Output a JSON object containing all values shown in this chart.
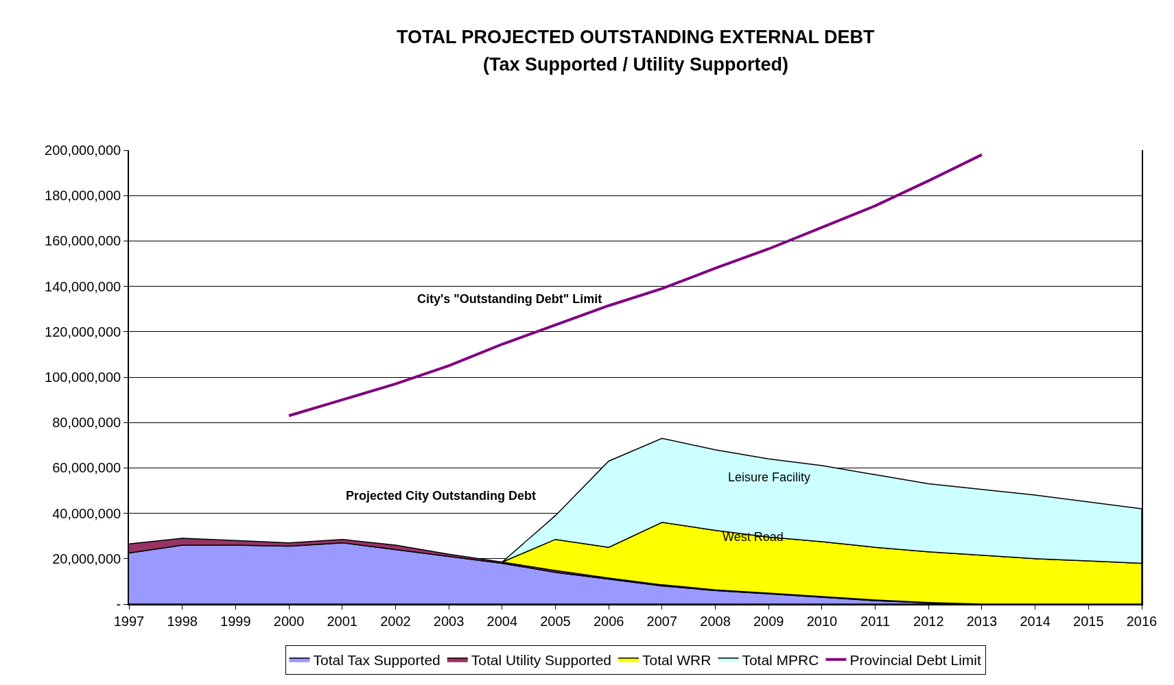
{
  "chart_data": {
    "type": "area",
    "stacked": true,
    "title": "TOTAL PROJECTED OUTSTANDING EXTERNAL DEBT",
    "subtitle": "(Tax Supported / Utility Supported)",
    "x": [
      1997,
      1998,
      1999,
      2000,
      2001,
      2002,
      2003,
      2004,
      2005,
      2006,
      2007,
      2008,
      2009,
      2010,
      2011,
      2012,
      2013,
      2014,
      2015,
      2016
    ],
    "series": [
      {
        "name": "Total Tax Supported",
        "color": "#9999ff",
        "values": [
          22500000,
          26000000,
          26000000,
          25500000,
          27000000,
          24000000,
          21000000,
          18000000,
          14000000,
          11000000,
          8000000,
          6000000,
          4500000,
          3000000,
          1500000,
          500000,
          0,
          0,
          0,
          0
        ]
      },
      {
        "name": "Total Utility Supported",
        "color": "#993366",
        "values": [
          4000000,
          3000000,
          2000000,
          1500000,
          1500000,
          2000000,
          1000000,
          500000,
          800000,
          500000,
          500000,
          300000,
          300000,
          300000,
          300000,
          200000,
          0,
          0,
          0,
          0
        ]
      },
      {
        "name": "Total WRR",
        "color": "#ffff00",
        "values": [
          null,
          null,
          null,
          null,
          null,
          null,
          null,
          0,
          13700000,
          13500000,
          27500000,
          26200000,
          24700000,
          24200000,
          23200000,
          22300000,
          21500000,
          20000000,
          19000000,
          18000000
        ]
      },
      {
        "name": "Total MPRC",
        "color": "#ccffff",
        "values": [
          null,
          null,
          null,
          null,
          null,
          null,
          null,
          0,
          10500000,
          38000000,
          37000000,
          35500000,
          34500000,
          33500000,
          32000000,
          30000000,
          29000000,
          28000000,
          26000000,
          24000000
        ]
      },
      {
        "name": "Provincial Debt Limit",
        "type": "line",
        "color": "#800080",
        "values": [
          null,
          null,
          null,
          83000000,
          90000000,
          97000000,
          105000000,
          114500000,
          123000000,
          131500000,
          139000000,
          148000000,
          156500000,
          166000000,
          175500000,
          186500000,
          198000000,
          null,
          null,
          null
        ]
      }
    ],
    "xlim": [
      1997,
      2016
    ],
    "xticks": [
      1997,
      1998,
      1999,
      2000,
      2001,
      2002,
      2003,
      2004,
      2005,
      2006,
      2007,
      2008,
      2009,
      2010,
      2011,
      2012,
      2013,
      2014,
      2015,
      2016
    ],
    "ylim": [
      0,
      200000000
    ],
    "yticks": [
      {
        "value": 0,
        "label": "-"
      },
      {
        "value": 20000000,
        "label": "20,000,000"
      },
      {
        "value": 40000000,
        "label": "40,000,000"
      },
      {
        "value": 60000000,
        "label": "60,000,000"
      },
      {
        "value": 80000000,
        "label": "80,000,000"
      },
      {
        "value": 100000000,
        "label": "100,000,000"
      },
      {
        "value": 120000000,
        "label": "120,000,000"
      },
      {
        "value": 140000000,
        "label": "140,000,000"
      },
      {
        "value": 160000000,
        "label": "160,000,000"
      },
      {
        "value": 180000000,
        "label": "180,000,000"
      },
      {
        "value": 200000000,
        "label": "200,000,000"
      }
    ],
    "grid": "y",
    "legend": "bottom",
    "marker": "none",
    "line_style": "solid",
    "annotations": [
      "City's \"Outstanding Debt\" Limit",
      "Projected City Outstanding Debt",
      "Leisure Facility",
      "West Road"
    ]
  }
}
